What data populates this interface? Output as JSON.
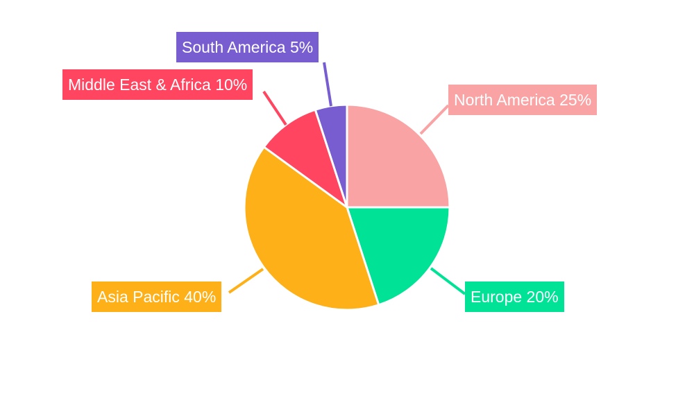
{
  "chart_data": {
    "type": "pie",
    "categories": [
      "North America",
      "Europe",
      "Asia Pacific",
      "Middle East & Africa",
      "South America"
    ],
    "values": [
      25,
      20,
      40,
      10,
      5
    ],
    "labels": [
      "North America 25%",
      "Europe 20%",
      "Asia Pacific 40%",
      "Middle East & Africa 10%",
      "South America 5%"
    ],
    "colors": [
      "#F9A3A4",
      "#00E396",
      "#FEB019",
      "#FF4560",
      "#775DD0"
    ],
    "start_angle": "12 o'clock",
    "direction": "clockwise"
  }
}
